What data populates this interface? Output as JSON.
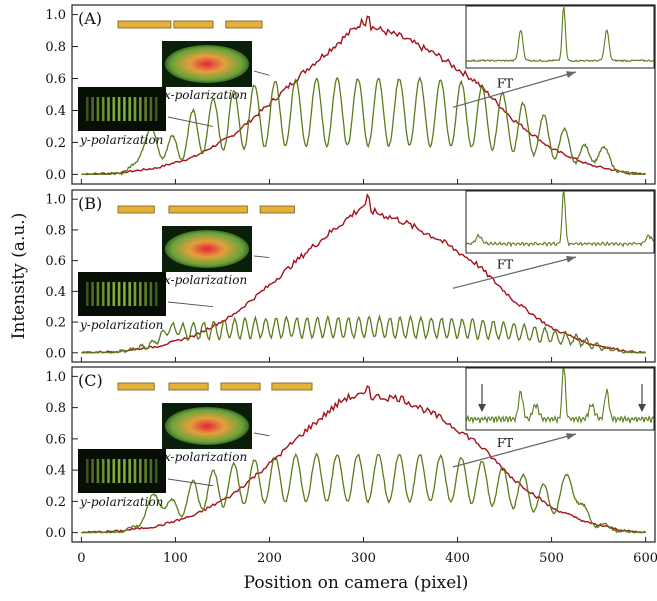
{
  "chart_data": {
    "type": "line",
    "xlabel": "Position on camera (pixel)",
    "ylabel": "Intensity (a.u.)",
    "xlim": [
      -10,
      610
    ],
    "ylim": [
      -0.06,
      1.06
    ],
    "xticks": [
      "0",
      "100",
      "200",
      "300",
      "400",
      "500",
      "600"
    ],
    "yticks": [
      "0.0",
      "0.2",
      "0.4",
      "0.6",
      "0.8",
      "1.0"
    ],
    "colors": {
      "x_series": "#a5121c",
      "y_series": "#5b7b1c",
      "bar": "#e4b23a"
    },
    "panels": [
      {
        "label": "(A)",
        "series": [
          {
            "name": "x-polarization",
            "x": [
              0,
              40,
              80,
              120,
              160,
              200,
              240,
              280,
              300,
              310,
              340,
              380,
              420,
              460,
              500,
              540,
              580,
              600
            ],
            "values": [
              0.0,
              0.01,
              0.04,
              0.11,
              0.24,
              0.44,
              0.66,
              0.86,
              0.96,
              0.92,
              0.86,
              0.74,
              0.58,
              0.34,
              0.16,
              0.06,
              0.01,
              0.0
            ]
          },
          {
            "name": "y-polarization",
            "mode": "fringes",
            "period": 22,
            "phase": 118,
            "env_center": 300,
            "env_width": 230,
            "peak": 0.6,
            "floor": 0.18,
            "bumps": [
              {
                "x": 72,
                "y": 0.18,
                "w": 12
              },
              {
                "x": 555,
                "y": 0.1,
                "w": 10
              }
            ]
          }
        ],
        "bars": [
          [
            38,
            92
          ],
          [
            95,
            135
          ],
          [
            148,
            185
          ]
        ],
        "inset_peaks": "sidebands-near"
      },
      {
        "label": "(B)",
        "series": [
          {
            "name": "x-polarization",
            "x": [
              0,
              40,
              80,
              120,
              160,
              200,
              240,
              280,
              300,
              310,
              340,
              380,
              420,
              460,
              500,
              540,
              580,
              600
            ],
            "values": [
              0.0,
              0.01,
              0.04,
              0.11,
              0.24,
              0.44,
              0.66,
              0.86,
              0.96,
              0.92,
              0.86,
              0.74,
              0.58,
              0.34,
              0.16,
              0.06,
              0.01,
              0.0
            ]
          },
          {
            "name": "y-polarization",
            "mode": "fringes",
            "period": 11,
            "phase": 130,
            "env_center": 290,
            "env_width": 260,
            "peak": 0.23,
            "floor": 0.1,
            "bumps": [
              {
                "x": 95,
                "y": 0.07,
                "w": 14
              }
            ]
          }
        ],
        "bars": [
          [
            38,
            75
          ],
          [
            90,
            170
          ],
          [
            183,
            218
          ]
        ],
        "inset_peaks": "sidebands-far"
      },
      {
        "label": "(C)",
        "series": [
          {
            "name": "x-polarization",
            "x": [
              0,
              40,
              80,
              120,
              160,
              200,
              240,
              280,
              300,
              310,
              340,
              380,
              420,
              460,
              500,
              540,
              580,
              600
            ],
            "values": [
              0.0,
              0.01,
              0.04,
              0.11,
              0.24,
              0.44,
              0.66,
              0.86,
              0.88,
              0.87,
              0.86,
              0.74,
              0.58,
              0.34,
              0.16,
              0.06,
              0.01,
              0.0
            ]
          },
          {
            "name": "y-polarization",
            "mode": "fringes",
            "period": 22,
            "phase": 118,
            "env_center": 300,
            "env_width": 230,
            "peak": 0.5,
            "floor": 0.2,
            "bumps": [
              {
                "x": 78,
                "y": 0.15,
                "w": 12
              },
              {
                "x": 520,
                "y": 0.18,
                "w": 10
              }
            ]
          }
        ],
        "bars": [
          [
            38,
            75
          ],
          [
            90,
            130
          ],
          [
            143,
            183
          ],
          [
            195,
            236
          ]
        ],
        "inset_peaks": "sidebands-both"
      }
    ],
    "annotations": {
      "x_pol_label": "x-polarization",
      "y_pol_label": "y-polarization",
      "ft_label": "FT"
    }
  }
}
